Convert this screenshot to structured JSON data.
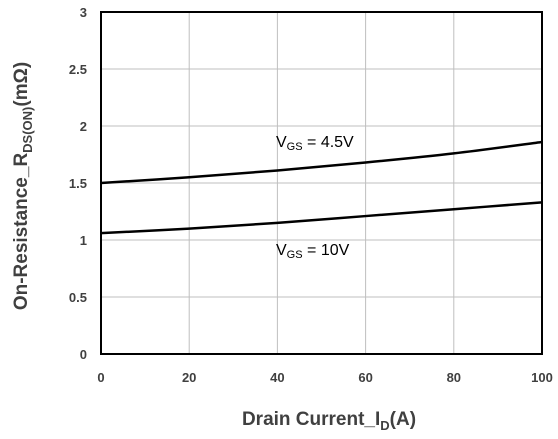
{
  "chart_data": {
    "type": "line",
    "xlabel": "Drain Current_I",
    "xlabel_sub": "D",
    "xlabel_unit": "(A)",
    "ylabel": "On-Resistance_R",
    "ylabel_sub": "DS(ON)",
    "ylabel_unit": "(mΩ)",
    "xlim": [
      0,
      100
    ],
    "ylim": [
      0,
      3
    ],
    "xticks": [
      0,
      20,
      40,
      60,
      80,
      100
    ],
    "yticks": [
      0,
      0.5,
      1,
      1.5,
      2,
      2.5,
      3
    ],
    "grid": true,
    "series": [
      {
        "label_main": "V",
        "label_sub": "GS",
        "label_rest": " = 4.5V",
        "color": "#000000",
        "x": [
          0,
          20,
          40,
          60,
          80,
          100
        ],
        "y": [
          1.5,
          1.55,
          1.61,
          1.68,
          1.76,
          1.86
        ]
      },
      {
        "label_main": "V",
        "label_sub": "GS",
        "label_rest": " = 10V",
        "color": "#000000",
        "x": [
          0,
          20,
          40,
          60,
          80,
          100
        ],
        "y": [
          1.06,
          1.1,
          1.15,
          1.21,
          1.27,
          1.33
        ]
      }
    ]
  },
  "colors": {
    "grid": "#bfbfbf",
    "axis": "#000000",
    "text": "#404040"
  }
}
